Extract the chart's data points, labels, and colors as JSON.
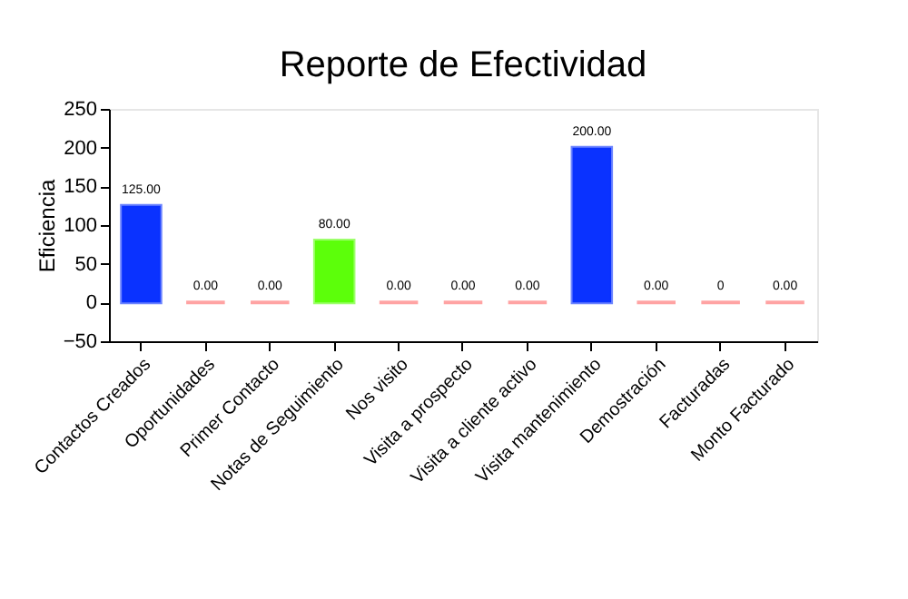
{
  "chart_data": {
    "type": "bar",
    "title": "Reporte de Efectividad",
    "ylabel": "Eficiencia",
    "categories": [
      "Contactos Creados",
      "Oportunidades",
      "Primer Contacto",
      "Notas de Seguimiento",
      "Nos visito",
      "Visita a prospecto",
      "Visita a cliente activo",
      "Visita mantenimiento",
      "Demostración",
      "Facturadas",
      "Monto Facturado"
    ],
    "values": [
      125,
      0,
      0,
      80,
      0,
      0,
      0,
      200,
      0,
      0,
      0
    ],
    "colors": [
      "#0a32ff",
      "#ff6666",
      "#ff6666",
      "#5cff0a",
      "#ff6666",
      "#ff6666",
      "#ff6666",
      "#0a32ff",
      "#ff6666",
      "#ff6666",
      "#ff6666"
    ],
    "value_labels": [
      "125.00",
      "0.00",
      "0.00",
      "80.00",
      "0.00",
      "0.00",
      "0.00",
      "200.00",
      "0.00",
      "0",
      "0.00"
    ],
    "ylim": [
      -50,
      250
    ],
    "yticks": [
      -50,
      0,
      50,
      100,
      150,
      200,
      250
    ],
    "grid": false
  }
}
